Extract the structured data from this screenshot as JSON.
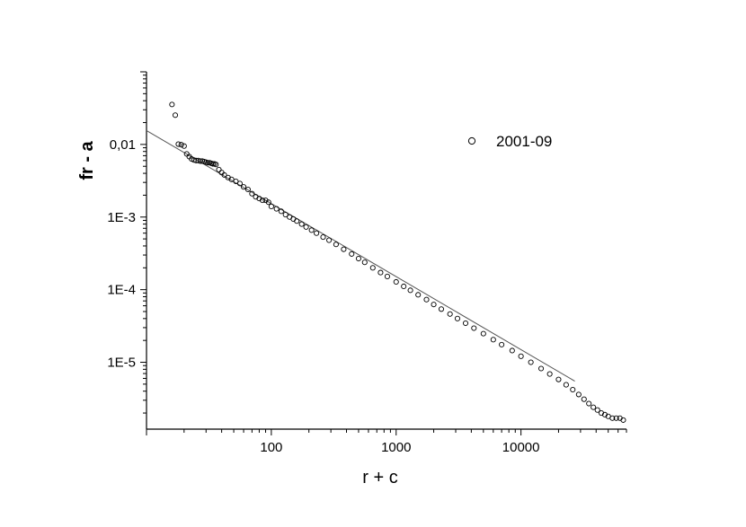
{
  "chart_data": {
    "type": "scatter",
    "xlabel": "r  +  c",
    "ylabel": "fr - a",
    "xscale": "log",
    "yscale": "log",
    "xlim": [
      10,
      70000
    ],
    "ylim": [
      1.2e-06,
      0.1
    ],
    "x_ticks": [
      {
        "value": 100,
        "label": "100"
      },
      {
        "value": 1000,
        "label": "1000"
      },
      {
        "value": 10000,
        "label": "10000"
      }
    ],
    "y_ticks": [
      {
        "value": 0.01,
        "label": "0,01"
      },
      {
        "value": 0.001,
        "label": "1E-3"
      },
      {
        "value": 0.0001,
        "label": "1E-4"
      },
      {
        "value": 1e-05,
        "label": "1E-5"
      }
    ],
    "legend": {
      "placement": "top-right",
      "entries": [
        "2001-09"
      ]
    },
    "grid": false,
    "marker": "open-circle",
    "series": [
      {
        "name": "2001-09",
        "x": [
          16,
          17,
          18,
          19,
          20,
          21,
          22,
          23,
          24,
          25,
          26,
          27,
          28,
          29,
          30,
          31,
          32,
          33,
          34,
          35,
          36,
          38,
          40,
          42,
          45,
          48,
          52,
          56,
          60,
          65,
          70,
          75,
          80,
          85,
          90,
          95,
          100,
          110,
          120,
          130,
          140,
          150,
          160,
          175,
          190,
          210,
          230,
          260,
          290,
          330,
          380,
          440,
          500,
          560,
          650,
          750,
          850,
          1000,
          1150,
          1300,
          1500,
          1750,
          2000,
          2300,
          2700,
          3100,
          3600,
          4200,
          5000,
          6000,
          7000,
          8500,
          10000,
          12000,
          14500,
          17000,
          20000,
          23000,
          26000,
          29000,
          32000,
          35000,
          38000,
          41000,
          44000,
          47000,
          50000,
          54000,
          58000,
          62000,
          66000
        ],
        "y": [
          0.0355,
          0.0253,
          0.0101,
          0.0099,
          0.0095,
          0.0074,
          0.0068,
          0.0063,
          0.0061,
          0.006,
          0.006,
          0.0059,
          0.0059,
          0.0058,
          0.0057,
          0.0056,
          0.0056,
          0.0055,
          0.0054,
          0.0054,
          0.0053,
          0.0045,
          0.0041,
          0.0038,
          0.0035,
          0.0033,
          0.0031,
          0.0029,
          0.0026,
          0.0024,
          0.0021,
          0.0019,
          0.0018,
          0.0017,
          0.0017,
          0.0016,
          0.0014,
          0.0013,
          0.0012,
          0.00108,
          0.001,
          0.00094,
          0.00088,
          0.0008,
          0.00073,
          0.00066,
          0.0006,
          0.00053,
          0.00048,
          0.00042,
          0.00036,
          0.00031,
          0.000268,
          0.000238,
          0.0002,
          0.000172,
          0.000152,
          0.000128,
          0.000111,
          9.8e-05,
          8.5e-05,
          7.3e-05,
          6.25e-05,
          5.4e-05,
          4.62e-05,
          4e-05,
          3.45e-05,
          2.95e-05,
          2.48e-05,
          2.05e-05,
          1.75e-05,
          1.45e-05,
          1.21e-05,
          1e-05,
          8.2e-06,
          6.9e-06,
          5.8e-06,
          4.9e-06,
          4.2e-06,
          3.6e-06,
          3.1e-06,
          2.7e-06,
          2.4e-06,
          2.2e-06,
          2e-06,
          1.9e-06,
          1.8e-06,
          1.7e-06,
          1.7e-06,
          1.7e-06,
          1.6e-06
        ]
      }
    ],
    "fit_line": {
      "x": [
        10,
        27000
      ],
      "y": [
        0.0155,
        5.5e-06
      ]
    }
  }
}
